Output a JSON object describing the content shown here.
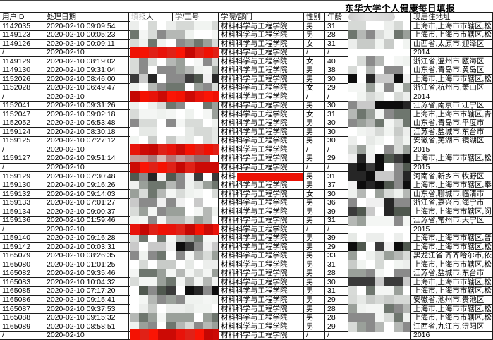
{
  "title": "东华大学个人健康每日填报",
  "header": {
    "user_id": "用户ID",
    "date": "处理日期",
    "reporter": "填报人",
    "staff_no": "学/工号",
    "college": "学院/部门",
    "gender": "性别",
    "age": "年龄",
    "redacted_col": "",
    "address": "现居住地址"
  },
  "redaction_colors": {
    "bright_red": "#ee1104",
    "dark_red": "#c50703",
    "mosaic_gray": "#9aa09a",
    "mosaic_dark": "#2b2b2b"
  },
  "rows": [
    {
      "id": "1142035",
      "date": "2020-02-10 09:09:54",
      "college": "材料科学与工程学院",
      "gender": "男",
      "age": "31",
      "address": "上海市,上海市市辖区,松江",
      "r34": "light",
      "r8": 1
    },
    {
      "id": "1149123",
      "date": "2020-02-10 00:05:23",
      "college": "材料科学与工程学院",
      "gender": "男",
      "age": "28",
      "address": "上海市,上海市市辖区,松江",
      "r34": "gray",
      "r8": 2
    },
    {
      "id": "1149126",
      "date": "2020-02-10 00:09:11",
      "college": "材料科学与工程学院",
      "gender": "女",
      "age": "31",
      "address": "山西省,太原市,迎泽区",
      "r34": "gray",
      "r8": 1
    },
    {
      "id": "/",
      "date": "2020-02-10",
      "college": "材料科学与工程学院",
      "gender": "/",
      "age": "/",
      "address": "2014",
      "r34": "red",
      "r8": 0
    },
    {
      "id": "1149129",
      "date": "2020-02-10 08:19:02",
      "college": "材料科学与工程学院",
      "gender": "女",
      "age": "40",
      "address": "浙江省,温州市,瓯海区",
      "r34": "gray",
      "r8": 2
    },
    {
      "id": "1149130",
      "date": "2020-02-10 09:31:04",
      "college": "材料科学与工程学院",
      "gender": "男",
      "age": "38",
      "address": "山东省,青岛市,黄岛区",
      "r34": "gray",
      "r8": 2
    },
    {
      "id": "1152026",
      "date": "2020-02-10 08:46:00",
      "college": "材料科学与工程学院",
      "gender": "男",
      "age": "30",
      "address": "上海市,上海市市辖区,松江",
      "r34": "dark",
      "r8": 3
    },
    {
      "id": "1152028",
      "date": "2020-02-10 06:49:47",
      "college": "材料科学与工程学院",
      "gender": "女",
      "age": "29",
      "address": "浙江省,杭州市,萧山区",
      "r34": "gray",
      "r8": 2
    },
    {
      "id": "/",
      "date": "2020-02-10",
      "college": "材料科学与工程学院",
      "gender": "/",
      "age": "/",
      "address": "2014",
      "r34": "red",
      "r8": 1
    },
    {
      "id": "1152041",
      "date": "2020-02-10 09:31:26",
      "college": "材料科学与工程学院",
      "gender": "男",
      "age": "30",
      "address": "江苏省,南京市,江宁区",
      "r34": "gray",
      "r8": 3
    },
    {
      "id": "1152047",
      "date": "2020-02-10 09:02:18",
      "college": "材料科学与工程学院",
      "gender": "女",
      "age": "31",
      "address": "上海市,上海市市辖区,青浦",
      "r34": "gray",
      "r8": 2
    },
    {
      "id": "1152052",
      "date": "2020-02-10 06:53:48",
      "college": "材料科学与工程学院",
      "gender": "男",
      "age": "30",
      "address": "山东省,青岛市,平度市",
      "r34": "gray",
      "r8": 2
    },
    {
      "id": "1159124",
      "date": "2020-02-10 08:30:18",
      "college": "材料科学与工程学院",
      "gender": "男",
      "age": "30",
      "address": "江苏省,盐城市,东台市",
      "r34": "light",
      "r8": 1
    },
    {
      "id": "1159125",
      "date": "2020-02-10 07:27:12",
      "college": "材料科学与工程学院",
      "gender": "男",
      "age": "30",
      "address": "安徽省,芜湖市,镜湖区",
      "r34": "light",
      "r8": 1
    },
    {
      "id": "/",
      "date": "2020-02-10",
      "college": "材料科学与工程学院",
      "gender": "/",
      "age": "/",
      "address": "2015",
      "r34": "red",
      "r8": 2
    },
    {
      "id": "1159127",
      "date": "2020-02-10 09:51:14",
      "college": "材料科学与工程学院",
      "gender": "男",
      "age": "29",
      "address": "上海市,上海市市辖区,松江",
      "r34": "redgray",
      "r8": 3
    },
    {
      "id": "/",
      "date": "2020-02-10",
      "college": "材料科学与工程学院",
      "gender": "/",
      "age": "/",
      "address": "2015",
      "r34": "red",
      "r8": 3
    },
    {
      "id": "1159129",
      "date": "2020-02-10 07:30:48",
      "college": "材料",
      "college_bar": true,
      "gender": "男",
      "age": "31",
      "address": "河南省,新乡市,牧野区",
      "r34": "dark",
      "r8": 3
    },
    {
      "id": "1159130",
      "date": "2020-02-10 09:16:26",
      "college": "材料科学与工程学院",
      "gender": "男",
      "age": "37",
      "address": "上海市,上海市市辖区,奉贤",
      "r34": "gray",
      "r8": 3
    },
    {
      "id": "1159132",
      "date": "2020-02-10 09:14:03",
      "college": "材料科学与工程学院",
      "gender": "女",
      "age": "30",
      "address": "山东省,聊城市,临清市",
      "r34": "gray",
      "r8": 2
    },
    {
      "id": "1159133",
      "date": "2020-02-10 07:01:27",
      "college": "材料科学与工程学院",
      "gender": "男",
      "age": "36",
      "address": "浙江省,嘉兴市,海宁市",
      "r34": "dark",
      "r8": 3
    },
    {
      "id": "1159134",
      "date": "2020-02-10 09:00:37",
      "college": "材料科学与工程学院",
      "gender": "男",
      "age": "39",
      "address": "上海市,上海市市辖区,闵行",
      "r34": "gray",
      "r8": 3
    },
    {
      "id": "1159136",
      "date": "2020-02-10 01:59:46",
      "college": "材料科学与工程学院",
      "gender": "男",
      "age": "31",
      "address": "江苏省,常州市,天宁区",
      "r34": "gray",
      "r8": 2
    },
    {
      "id": "/",
      "date": "2020-02-10",
      "college": "材料科学与工程学院",
      "gender": "/",
      "age": "/",
      "address": "2015",
      "r34": "red",
      "r8": 0
    },
    {
      "id": "1159140",
      "date": "2020-02-10 09:16:28",
      "college": "材料科学与工程学院",
      "gender": "男",
      "age": "39",
      "address": "上海市,上海市市辖区,普陀",
      "r34": "gray",
      "r8": 1
    },
    {
      "id": "1159142",
      "date": "2020-02-10 00:03:31",
      "college": "材料科学与工程学院",
      "gender": "男",
      "age": "29",
      "address": "上海市,上海市市辖区,松江",
      "r34": "dark",
      "r8": 3
    },
    {
      "id": "1165079",
      "date": "2020-02-10 08:26:35",
      "college": "材料科学与工程学院",
      "gender": "男",
      "age": "33",
      "address": "黑龙江省,齐齐哈尔市,依安",
      "r34": "gray",
      "r8": 2
    },
    {
      "id": "1165080",
      "date": "2020-02-10 01:01:25",
      "college": "材料科学与工程学院",
      "gender": "男",
      "age": "31",
      "address": "上海市,上海市市辖区,松江",
      "r34": "light",
      "r8": 1
    },
    {
      "id": "1165082",
      "date": "2020-02-10 09:35:46",
      "college": "材料科学与工程学院",
      "gender": "男",
      "age": "28",
      "address": "江苏省,盐城市,东台市",
      "r34": "gray",
      "r8": 2
    },
    {
      "id": "1165083",
      "date": "2020-02-10 10:04:32",
      "college": "材料科学与工程学院",
      "gender": "男",
      "age": "30",
      "address": "上海市,上海市市辖区,松江",
      "r34": "gray",
      "r8": 3
    },
    {
      "id": "1165085",
      "date": "2020-02-10 07:17:20",
      "college": "材料科学与工程学院",
      "gender": "男",
      "age": "31",
      "address": "上海市,上海市市辖区,松江",
      "r34": "dark",
      "r8": 2
    },
    {
      "id": "1165086",
      "date": "2020-02-10 09:15:41",
      "college": "材料科学与工程学院",
      "gender": "男",
      "age": "29",
      "address": "安徽省,池州市,贵池区",
      "r34": "gray",
      "r8": 1
    },
    {
      "id": "1165087",
      "date": "2020-02-10 09:37:53",
      "college": "材料科学与工程学院",
      "gender": "男",
      "age": "28",
      "address": "上海市,上海市市辖区,松江",
      "r34": "light",
      "r8": 2
    },
    {
      "id": "1165088",
      "date": "2020-02-10 09:15:32",
      "college": "材料科学与工程学院",
      "gender": "男",
      "age": "28",
      "address": "上海市,上海市市辖区,松江",
      "r34": "gray",
      "r8": 2
    },
    {
      "id": "1165089",
      "date": "2020-02-10 08:58:51",
      "college": "材料科学与工程学院",
      "gender": "男",
      "age": "29",
      "address": "江西省,九江市,浔阳区",
      "r34": "gray",
      "r8": 2,
      "r8_text": "1"
    },
    {
      "id": "/",
      "date": "2020-02-10",
      "college": "材料科学与工程学院",
      "gender": "/",
      "age": "/",
      "address": "2016",
      "r34": "red",
      "r8": 0
    }
  ]
}
